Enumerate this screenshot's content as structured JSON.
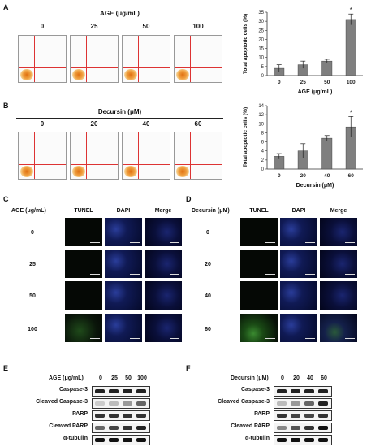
{
  "panels": {
    "A": "A",
    "B": "B",
    "C": "C",
    "D": "D",
    "E": "E",
    "F": "F"
  },
  "flow_A": {
    "title": "AGE (μg/mL)",
    "conditions": [
      "0",
      "25",
      "50",
      "100"
    ]
  },
  "flow_B": {
    "title": "Decursin (μM)",
    "conditions": [
      "0",
      "20",
      "40",
      "60"
    ]
  },
  "chart_data": [
    {
      "type": "bar",
      "categories": [
        "0",
        "25",
        "50",
        "100"
      ],
      "values": [
        4,
        6,
        8,
        31
      ],
      "errors": [
        2,
        2,
        1,
        3
      ],
      "significant": [
        false,
        false,
        false,
        true
      ],
      "ylabel": "Total apoptotic cells (%)",
      "xlabel": "AGE (μg/mL)",
      "ylim": [
        0,
        35
      ],
      "yticks": [
        0,
        5,
        10,
        15,
        20,
        25,
        30,
        35
      ],
      "bar_color": "#7f7f7f"
    },
    {
      "type": "bar",
      "categories": [
        "0",
        "20",
        "40",
        "60"
      ],
      "values": [
        2.8,
        4,
        6.8,
        9.3
      ],
      "errors": [
        0.6,
        1.6,
        0.6,
        2.3
      ],
      "significant": [
        false,
        false,
        false,
        true
      ],
      "ylabel": "Total apoptotic cells (%)",
      "xlabel": "Decursin (μM)",
      "ylim": [
        0,
        14
      ],
      "yticks": [
        0,
        2,
        4,
        6,
        8,
        10,
        12,
        14
      ],
      "bar_color": "#7f7f7f"
    }
  ],
  "panel_C": {
    "row_header": "AGE (μg/mL)",
    "columns": [
      "TUNEL",
      "DAPI",
      "Merge"
    ],
    "rows": [
      "0",
      "25",
      "50",
      "100"
    ]
  },
  "panel_D": {
    "row_header": "Decursin (μM)",
    "columns": [
      "TUNEL",
      "DAPI",
      "Merge"
    ],
    "rows": [
      "0",
      "20",
      "40",
      "60"
    ]
  },
  "panel_E": {
    "header": "AGE (μg/mL)",
    "lanes": [
      "0",
      "25",
      "50",
      "100"
    ],
    "proteins": [
      "Caspase-3",
      "Cleaved Caspase-3",
      "PARP",
      "Cleaved PARP",
      "α-tubulin"
    ]
  },
  "panel_F": {
    "header": "Decursin (μM)",
    "lanes": [
      "0",
      "20",
      "40",
      "60"
    ],
    "proteins": [
      "Caspase-3",
      "Cleaved Caspase-3",
      "PARP",
      "Cleaved PARP",
      "α-tubulin"
    ]
  },
  "significance_marker": "*"
}
